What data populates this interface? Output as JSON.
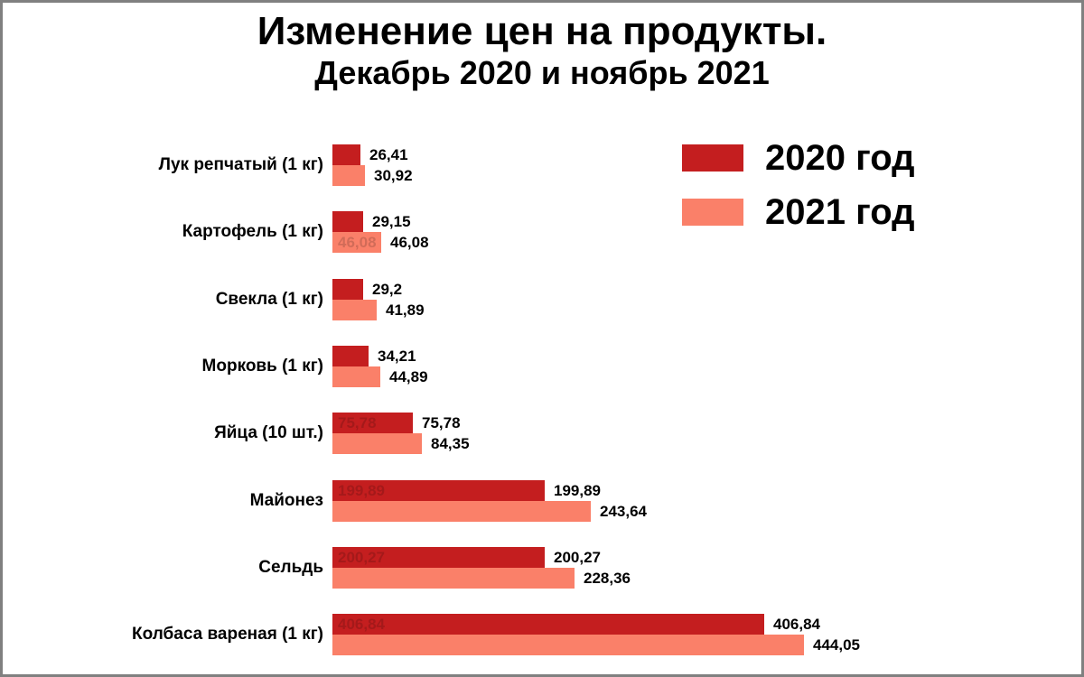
{
  "frame": {
    "background": "#ffffff",
    "border_color": "#808080"
  },
  "chart_data": {
    "type": "bar",
    "orientation": "horizontal",
    "title": "Изменение цен на продукты.",
    "subtitle": "Декабрь 2020 и ноябрь 2021",
    "categories": [
      "Лук репчатый (1 кг)",
      "Картофель (1 кг)",
      "Свекла (1 кг)",
      "Морковь (1 кг)",
      "Яйца (10 шт.)",
      "Майонез",
      "Сельдь",
      "Колбаса вареная (1 кг)"
    ],
    "series": [
      {
        "name": "2020 год",
        "color": "#c41e1f",
        "values": [
          26.41,
          29.15,
          29.2,
          34.21,
          75.78,
          199.89,
          200.27,
          406.84
        ],
        "value_labels": [
          "26,41",
          "29,15",
          "29,2",
          "34,21",
          "75,78",
          "199,89",
          "200,27",
          "406,84"
        ]
      },
      {
        "name": "2021 год",
        "color": "#fa8069",
        "values": [
          30.92,
          46.08,
          41.89,
          44.89,
          84.35,
          243.64,
          228.36,
          444.05
        ],
        "value_labels": [
          "30,92",
          "46,08",
          "41,89",
          "44,89",
          "84,35",
          "243,64",
          "228,36",
          "444,05"
        ]
      }
    ],
    "ghost_value_labels_in_bars": [
      [
        false,
        false,
        false,
        false,
        true,
        true,
        true,
        true
      ],
      [
        false,
        true,
        false,
        false,
        false,
        false,
        false,
        false
      ]
    ],
    "decimal_separator": ",",
    "xlim": [
      0,
      450
    ],
    "value_axis_visible": false,
    "grid": false,
    "legend_position": "top-right"
  }
}
